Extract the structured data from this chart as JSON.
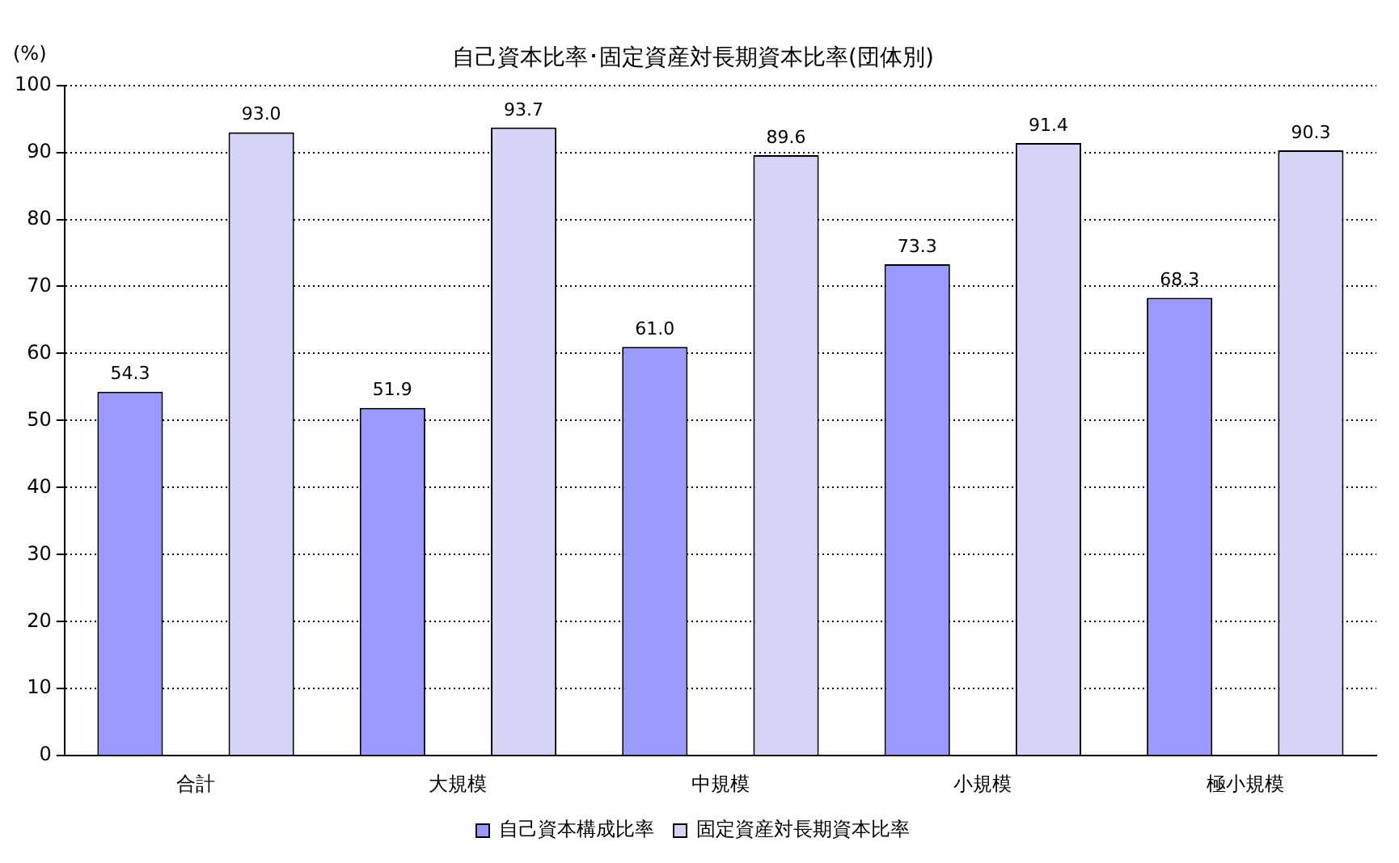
{
  "chart_data": {
    "type": "bar",
    "title": "自己資本比率･固定資産対長期資本比率(団体別)",
    "ylabel": "(%)",
    "categories": [
      "合計",
      "大規模",
      "中規模",
      "小規模",
      "極小規模"
    ],
    "series": [
      {
        "name": "自己資本構成比率",
        "color": "#9999ff",
        "values": [
          54.3,
          51.9,
          61.0,
          73.3,
          68.3
        ],
        "value_labels": [
          "54.3",
          "51.9",
          "61.0",
          "73.3",
          "68.3"
        ]
      },
      {
        "name": "固定資産対長期資本比率",
        "color": "#d4d4f7",
        "values": [
          93.0,
          93.7,
          89.6,
          91.4,
          90.3
        ],
        "value_labels": [
          "93.0",
          "93.7",
          "89.6",
          "91.4",
          "90.3"
        ]
      }
    ],
    "ylim": [
      0,
      100
    ],
    "yticks": [
      0,
      10,
      20,
      30,
      40,
      50,
      60,
      70,
      80,
      90,
      100
    ],
    "grid": "y",
    "legend": "bottom"
  }
}
